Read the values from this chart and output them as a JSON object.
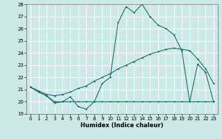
{
  "xlabel": "Humidex (Indice chaleur)",
  "x": [
    0,
    1,
    2,
    3,
    4,
    5,
    6,
    7,
    8,
    9,
    10,
    11,
    12,
    13,
    14,
    15,
    16,
    17,
    18,
    19,
    20,
    21,
    22,
    23
  ],
  "line1": [
    21.2,
    20.8,
    20.5,
    19.9,
    20.0,
    20.4,
    19.6,
    19.4,
    20.0,
    21.5,
    22.0,
    26.5,
    27.8,
    27.3,
    28.0,
    27.0,
    26.3,
    26.0,
    25.5,
    24.2,
    20.0,
    23.1,
    22.4,
    20.0
  ],
  "line2": [
    21.2,
    20.9,
    20.6,
    20.5,
    20.6,
    20.8,
    21.1,
    21.3,
    21.7,
    22.0,
    22.3,
    22.7,
    23.0,
    23.3,
    23.6,
    23.9,
    24.1,
    24.3,
    24.4,
    24.3,
    24.2,
    23.5,
    22.7,
    21.5
  ],
  "line3": [
    21.2,
    20.8,
    20.5,
    20.0,
    20.0,
    20.0,
    20.0,
    20.0,
    20.0,
    20.0,
    20.0,
    20.0,
    20.0,
    20.0,
    20.0,
    20.0,
    20.0,
    20.0,
    20.0,
    20.0,
    20.0,
    20.0,
    20.0,
    20.0
  ],
  "ylim": [
    19,
    28
  ],
  "xlim": [
    -0.5,
    23.5
  ],
  "yticks": [
    19,
    20,
    21,
    22,
    23,
    24,
    25,
    26,
    27,
    28
  ],
  "xticks": [
    0,
    1,
    2,
    3,
    4,
    5,
    6,
    7,
    8,
    9,
    10,
    11,
    12,
    13,
    14,
    15,
    16,
    17,
    18,
    19,
    20,
    21,
    22,
    23
  ],
  "line_color": "#1a6b6b",
  "bg_color": "#cce8e8",
  "grid_color": "#ffffff",
  "marker": "D",
  "marker_size": 1.5,
  "line_width": 0.8,
  "tick_fontsize": 5,
  "xlabel_fontsize": 6
}
